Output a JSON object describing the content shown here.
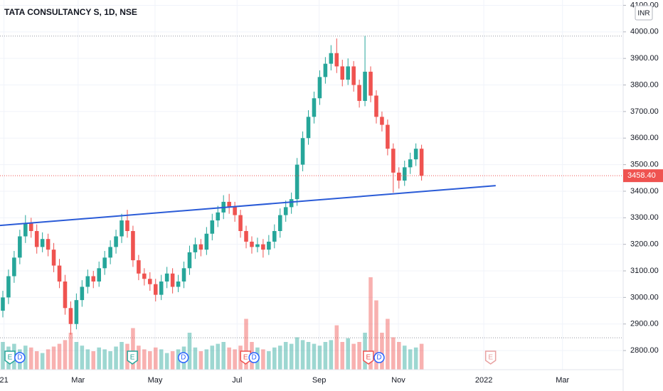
{
  "chart_data": {
    "type": "candlestick",
    "title": "TATA CONSULTANCY S, 1D, NSE",
    "currency": "INR",
    "up_color": "#26a69a",
    "down_color": "#ef5350",
    "xlim": [
      -0.5,
      109.5
    ],
    "xticks": [
      {
        "value": 0.2,
        "label": "21"
      },
      {
        "value": 13.3,
        "label": "Mar"
      },
      {
        "value": 26.9,
        "label": "May"
      },
      {
        "value": 41.4,
        "label": "Jul"
      },
      {
        "value": 55.9,
        "label": "Sep"
      },
      {
        "value": 69.9,
        "label": "Nov"
      },
      {
        "value": 85.0,
        "label": "2022"
      },
      {
        "value": 98.9,
        "label": "Mar"
      }
    ],
    "ylim": [
      2728,
      4120
    ],
    "yticks": [
      {
        "value": 2800,
        "label": "2800.00"
      },
      {
        "value": 2900,
        "label": "2900.00"
      },
      {
        "value": 3000,
        "label": "3000.00"
      },
      {
        "value": 3100,
        "label": "3100.00"
      },
      {
        "value": 3200,
        "label": "3200.00"
      },
      {
        "value": 3300,
        "label": "3300.00"
      },
      {
        "value": 3400,
        "label": "3400.00"
      },
      {
        "value": 3500,
        "label": "3500.00"
      },
      {
        "value": 3600,
        "label": "3600.00"
      },
      {
        "value": 3700,
        "label": "3700.00"
      },
      {
        "value": 3800,
        "label": "3800.00"
      },
      {
        "value": 3900,
        "label": "3900.00"
      },
      {
        "value": 4000,
        "label": "4000.00"
      },
      {
        "value": 4100,
        "label": "4100.00"
      }
    ],
    "open": [
      2950,
      3000,
      3080,
      3150,
      3230,
      3280,
      3250,
      3190,
      3220,
      3180,
      3120,
      3060,
      2960,
      2900,
      2990,
      3040,
      3080,
      3060,
      3110,
      3150,
      3190,
      3230,
      3290,
      3250,
      3140,
      3090,
      3070,
      3050,
      3010,
      3060,
      3090,
      3040,
      3060,
      3110,
      3170,
      3200,
      3180,
      3240,
      3290,
      3320,
      3360,
      3340,
      3310,
      3250,
      3210,
      3190,
      3200,
      3180,
      3210,
      3250,
      3310,
      3340,
      3370,
      3500,
      3600,
      3680,
      3750,
      3830,
      3880,
      3920,
      3870,
      3820,
      3870,
      3800,
      3740,
      3850,
      3760,
      3680,
      3650,
      3560,
      3470,
      3440,
      3490,
      3520,
      3560
    ],
    "high": [
      3025,
      3105,
      3175,
      3255,
      3310,
      3300,
      3275,
      3245,
      3240,
      3205,
      3145,
      3085,
      2985,
      3015,
      3065,
      3105,
      3100,
      3135,
      3175,
      3215,
      3255,
      3315,
      3330,
      3270,
      3160,
      3110,
      3095,
      3070,
      3085,
      3115,
      3110,
      3085,
      3135,
      3195,
      3225,
      3220,
      3265,
      3315,
      3345,
      3385,
      3390,
      3360,
      3330,
      3270,
      3230,
      3225,
      3220,
      3235,
      3275,
      3335,
      3365,
      3395,
      3525,
      3625,
      3705,
      3775,
      3855,
      3905,
      3950,
      3975,
      3895,
      3900,
      3890,
      3820,
      3985,
      3870,
      3780,
      3700,
      3670,
      3580,
      3490,
      3515,
      3545,
      3580,
      3575
    ],
    "low": [
      2925,
      2975,
      3055,
      3125,
      3205,
      3225,
      3165,
      3170,
      3155,
      3095,
      3035,
      2935,
      2860,
      2880,
      2965,
      3015,
      3035,
      3040,
      3085,
      3125,
      3165,
      3205,
      3225,
      3115,
      3065,
      3045,
      3025,
      2985,
      2990,
      3035,
      3015,
      3020,
      3035,
      3085,
      3145,
      3155,
      3160,
      3215,
      3265,
      3295,
      3315,
      3285,
      3225,
      3185,
      3165,
      3170,
      3150,
      3160,
      3185,
      3225,
      3285,
      3315,
      3345,
      3475,
      3575,
      3655,
      3725,
      3805,
      3855,
      3845,
      3795,
      3800,
      3775,
      3715,
      3720,
      3735,
      3655,
      3625,
      3535,
      3395,
      3410,
      3420,
      3465,
      3495,
      3440
    ],
    "close": [
      3000,
      3080,
      3150,
      3230,
      3280,
      3250,
      3190,
      3220,
      3180,
      3120,
      3060,
      2960,
      2900,
      2990,
      3040,
      3080,
      3060,
      3110,
      3150,
      3190,
      3230,
      3290,
      3250,
      3140,
      3090,
      3070,
      3050,
      3010,
      3060,
      3090,
      3040,
      3060,
      3110,
      3170,
      3200,
      3180,
      3240,
      3290,
      3320,
      3360,
      3340,
      3310,
      3250,
      3210,
      3190,
      3200,
      3180,
      3210,
      3250,
      3310,
      3340,
      3370,
      3500,
      3600,
      3680,
      3750,
      3830,
      3880,
      3920,
      3870,
      3820,
      3870,
      3800,
      3740,
      3850,
      3760,
      3680,
      3650,
      3560,
      3470,
      3440,
      3490,
      3520,
      3560,
      3458.4
    ],
    "volume": [
      30,
      25,
      28,
      22,
      26,
      24,
      20,
      18,
      22,
      25,
      28,
      32,
      40,
      30,
      26,
      22,
      20,
      24,
      22,
      20,
      25,
      30,
      28,
      45,
      26,
      22,
      20,
      24,
      22,
      18,
      20,
      22,
      25,
      40,
      24,
      20,
      22,
      26,
      28,
      30,
      24,
      22,
      26,
      55,
      30,
      24,
      22,
      20,
      24,
      26,
      30,
      28,
      35,
      32,
      30,
      28,
      26,
      30,
      32,
      48,
      30,
      34,
      28,
      30,
      40,
      100,
      75,
      40,
      55,
      35,
      30,
      26,
      22,
      24,
      28
    ],
    "last": {
      "value": 3458.4,
      "label": "3458.40"
    },
    "ref_lines": [
      3984,
      2848
    ],
    "trendline": {
      "x": [
        -0.5,
        87.1
      ],
      "y": [
        3271,
        3421
      ],
      "color": "#2a5bd7"
    },
    "events": [
      {
        "label": "E",
        "x": 1.26,
        "color": "#26a69a"
      },
      {
        "label": "D",
        "x": 3.0,
        "color": "#2962ff"
      },
      {
        "label": "E",
        "x": 22.9,
        "color": "#26a69a"
      },
      {
        "label": "D",
        "x": 31.9,
        "color": "#2962ff"
      },
      {
        "label": "E",
        "x": 42.9,
        "color": "#ef5350"
      },
      {
        "label": "D",
        "x": 44.4,
        "color": "#2962ff"
      },
      {
        "label": "E",
        "x": 64.6,
        "color": "#ef5350"
      },
      {
        "label": "D",
        "x": 66.5,
        "color": "#2962ff"
      },
      {
        "label": "E",
        "x": 86.2,
        "color": "#e8a0a0"
      }
    ]
  }
}
